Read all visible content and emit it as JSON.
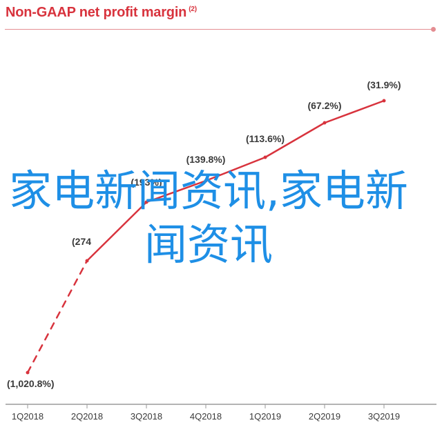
{
  "title": "Non-GAAP net profit margin",
  "title_note": "(2)",
  "watermark_text": "家电新闻资讯,家电新闻资讯",
  "colors": {
    "title": "#d8333d",
    "line": "#d8333d",
    "axis": "#9a9a9a",
    "label": "#3a3a3a",
    "watermark": "#1e8fe6"
  },
  "chart_data": {
    "type": "line",
    "title": "Non-GAAP net profit margin",
    "xlabel": "",
    "ylabel": "",
    "grid": false,
    "categories": [
      "1Q2018",
      "2Q2018",
      "3Q2018",
      "4Q2018",
      "1Q2019",
      "2Q2019",
      "3Q2019"
    ],
    "values": [
      -1020.8,
      -274,
      -193,
      -139.8,
      -113.6,
      -67.2,
      -31.9
    ],
    "data_labels": [
      "(1,020.8%)",
      "(274",
      "(193%)",
      "(139.8%)",
      "(113.6%)",
      "(67.2%)",
      "(31.9%)"
    ],
    "segment_styles": [
      "dashed",
      "solid",
      "solid",
      "solid",
      "solid",
      "solid"
    ],
    "ylim": [
      -1050,
      0
    ]
  }
}
